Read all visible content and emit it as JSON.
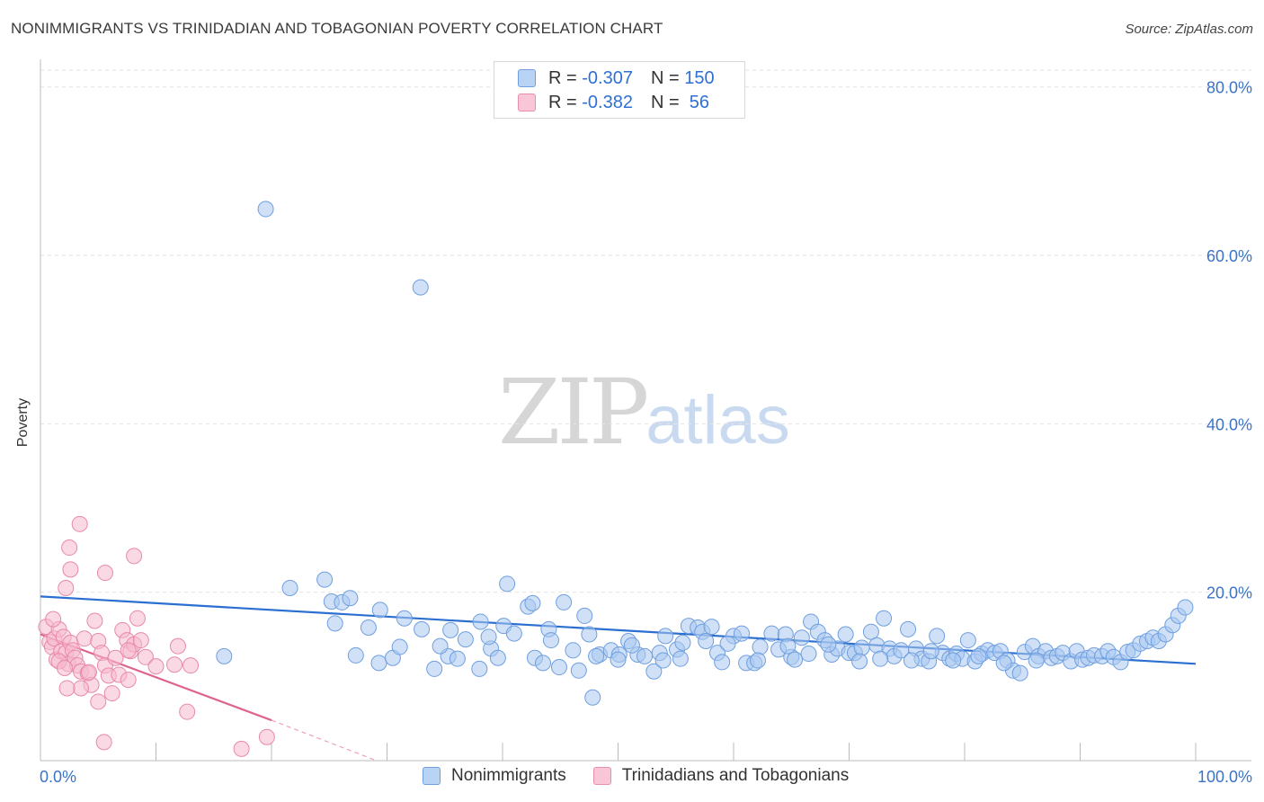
{
  "header": {
    "title": "NONIMMIGRANTS VS TRINIDADIAN AND TOBAGONIAN POVERTY CORRELATION CHART",
    "source": "Source: ZipAtlas.com"
  },
  "watermark": {
    "zip": "ZIP",
    "atlas": "atlas"
  },
  "legend": {
    "rows": [
      {
        "r_label": "R =",
        "r_value": "-0.307",
        "n_label": "N =",
        "n_value": "150"
      },
      {
        "r_label": "R =",
        "r_value": "-0.382",
        "n_label": "N =",
        "n_value": " 56"
      }
    ]
  },
  "bottom_legend": {
    "series_a": "Nonimmigrants",
    "series_b": "Trinidadians and Tobagonians"
  },
  "colors": {
    "blue_fill": "#a9c8f0",
    "blue_stroke": "#6f9fe0",
    "blue_line": "#2b6fd0",
    "pink_fill": "#f6b9cd",
    "pink_stroke": "#e889ab",
    "pink_line": "#e0628f",
    "grid": "#e3e3e3",
    "axis_label": "#3b73c9"
  },
  "chart_data": {
    "type": "scatter",
    "title": "NONIMMIGRANTS VS TRINIDADIAN AND TOBAGONIAN POVERTY CORRELATION CHART",
    "xlabel": "",
    "ylabel": "Poverty",
    "xlim": [
      0,
      100
    ],
    "ylim": [
      0,
      82
    ],
    "x_tick_labels": {
      "left": "0.0%",
      "right": "100.0%"
    },
    "y_ticks": [
      {
        "value": 20,
        "label": "20.0%"
      },
      {
        "value": 40,
        "label": "40.0%"
      },
      {
        "value": 60,
        "label": "60.0%"
      },
      {
        "value": 80,
        "label": "80.0%"
      }
    ],
    "series": [
      {
        "name": "Nonimmigrants",
        "r": -0.307,
        "n": 150,
        "trend": {
          "x0": 0,
          "y0": 19.5,
          "x1": 100,
          "y1": 11.5
        },
        "points": [
          [
            19.5,
            65.5
          ],
          [
            32.9,
            56.2
          ],
          [
            21.6,
            20.5
          ],
          [
            24.6,
            21.5
          ],
          [
            25.2,
            18.9
          ],
          [
            26.1,
            18.8
          ],
          [
            26.8,
            19.3
          ],
          [
            25.5,
            16.3
          ],
          [
            28.4,
            15.8
          ],
          [
            29.4,
            17.9
          ],
          [
            31.5,
            16.9
          ],
          [
            33.0,
            15.6
          ],
          [
            35.5,
            15.5
          ],
          [
            36.8,
            14.4
          ],
          [
            38.1,
            16.5
          ],
          [
            40.1,
            16.0
          ],
          [
            41.0,
            15.1
          ],
          [
            42.2,
            18.3
          ],
          [
            42.6,
            18.7
          ],
          [
            44.0,
            15.6
          ],
          [
            45.3,
            18.8
          ],
          [
            47.1,
            17.2
          ],
          [
            40.4,
            21.0
          ],
          [
            27.3,
            12.5
          ],
          [
            29.3,
            11.6
          ],
          [
            30.5,
            12.2
          ],
          [
            31.1,
            13.5
          ],
          [
            34.1,
            10.9
          ],
          [
            35.3,
            12.4
          ],
          [
            36.1,
            12.1
          ],
          [
            38.0,
            10.9
          ],
          [
            39.0,
            13.3
          ],
          [
            39.6,
            12.2
          ],
          [
            42.8,
            12.2
          ],
          [
            44.2,
            14.3
          ],
          [
            44.9,
            11.1
          ],
          [
            46.1,
            13.1
          ],
          [
            46.6,
            10.7
          ],
          [
            47.5,
            15.0
          ],
          [
            48.4,
            12.6
          ],
          [
            49.4,
            13.1
          ],
          [
            50.1,
            12.6
          ],
          [
            50.9,
            14.2
          ],
          [
            51.7,
            12.6
          ],
          [
            52.3,
            12.4
          ],
          [
            53.1,
            10.6
          ],
          [
            53.6,
            12.8
          ],
          [
            54.1,
            14.8
          ],
          [
            55.1,
            13.2
          ],
          [
            55.6,
            14.0
          ],
          [
            56.1,
            16.0
          ],
          [
            56.9,
            15.8
          ],
          [
            57.3,
            15.3
          ],
          [
            58.1,
            15.9
          ],
          [
            58.6,
            12.8
          ],
          [
            59.0,
            11.7
          ],
          [
            60.0,
            14.8
          ],
          [
            60.7,
            15.1
          ],
          [
            61.1,
            11.6
          ],
          [
            61.8,
            11.6
          ],
          [
            62.3,
            13.5
          ],
          [
            63.3,
            15.1
          ],
          [
            63.9,
            13.2
          ],
          [
            64.5,
            15.0
          ],
          [
            65.0,
            12.3
          ],
          [
            65.3,
            12.0
          ],
          [
            65.9,
            14.6
          ],
          [
            66.7,
            16.5
          ],
          [
            67.3,
            15.3
          ],
          [
            67.9,
            14.3
          ],
          [
            68.5,
            12.6
          ],
          [
            69.0,
            13.3
          ],
          [
            69.7,
            15.0
          ],
          [
            70.0,
            12.8
          ],
          [
            70.5,
            12.8
          ],
          [
            71.1,
            13.4
          ],
          [
            71.9,
            15.3
          ],
          [
            72.4,
            13.7
          ],
          [
            73.0,
            16.9
          ],
          [
            73.5,
            13.3
          ],
          [
            73.9,
            12.4
          ],
          [
            74.5,
            13.1
          ],
          [
            75.1,
            15.6
          ],
          [
            75.8,
            13.3
          ],
          [
            76.3,
            12.1
          ],
          [
            76.9,
            11.8
          ],
          [
            77.6,
            14.8
          ],
          [
            78.1,
            12.8
          ],
          [
            78.7,
            12.1
          ],
          [
            79.3,
            12.7
          ],
          [
            79.8,
            12.1
          ],
          [
            80.3,
            14.3
          ],
          [
            80.9,
            11.8
          ],
          [
            81.5,
            12.7
          ],
          [
            82.0,
            13.1
          ],
          [
            82.6,
            12.8
          ],
          [
            83.1,
            13.0
          ],
          [
            83.7,
            11.9
          ],
          [
            84.2,
            10.7
          ],
          [
            84.8,
            10.4
          ],
          [
            85.2,
            12.9
          ],
          [
            85.9,
            13.6
          ],
          [
            86.4,
            12.4
          ],
          [
            87.0,
            13.0
          ],
          [
            87.5,
            12.2
          ],
          [
            88.0,
            12.4
          ],
          [
            88.5,
            12.8
          ],
          [
            89.2,
            11.8
          ],
          [
            89.7,
            13.0
          ],
          [
            90.2,
            12.0
          ],
          [
            90.7,
            12.2
          ],
          [
            91.2,
            12.5
          ],
          [
            91.9,
            12.4
          ],
          [
            92.4,
            13.0
          ],
          [
            92.9,
            12.3
          ],
          [
            93.5,
            11.7
          ],
          [
            94.1,
            12.9
          ],
          [
            94.6,
            13.1
          ],
          [
            95.2,
            13.9
          ],
          [
            95.8,
            14.2
          ],
          [
            96.3,
            14.6
          ],
          [
            96.8,
            14.2
          ],
          [
            97.4,
            15.0
          ],
          [
            98.0,
            16.1
          ],
          [
            98.5,
            17.2
          ],
          [
            99.1,
            18.2
          ],
          [
            50.0,
            12.0
          ],
          [
            51.2,
            13.7
          ],
          [
            53.9,
            11.9
          ],
          [
            55.4,
            12.1
          ],
          [
            47.8,
            7.5
          ],
          [
            15.9,
            12.4
          ],
          [
            34.6,
            13.6
          ],
          [
            38.8,
            14.7
          ],
          [
            43.5,
            11.6
          ],
          [
            48.1,
            12.4
          ],
          [
            57.6,
            14.2
          ],
          [
            59.5,
            13.9
          ],
          [
            62.1,
            11.9
          ],
          [
            64.7,
            13.6
          ],
          [
            66.5,
            12.7
          ],
          [
            68.2,
            13.8
          ],
          [
            70.9,
            11.8
          ],
          [
            72.7,
            12.1
          ],
          [
            75.4,
            11.9
          ],
          [
            77.1,
            13.0
          ],
          [
            79.0,
            11.9
          ],
          [
            81.2,
            12.4
          ],
          [
            83.4,
            11.6
          ],
          [
            86.2,
            11.9
          ]
        ]
      },
      {
        "name": "Trinidadians and Tobagonians",
        "r": -0.382,
        "n": 56,
        "trend": {
          "x0": 0,
          "y0": 15.0,
          "x1": 20,
          "y1": 4.8
        },
        "trend_dashed": {
          "x0": 20,
          "y0": 4.8,
          "x1": 29.1,
          "y1": 0
        },
        "points": [
          [
            0.5,
            15.9
          ],
          [
            0.8,
            14.1
          ],
          [
            1.0,
            13.5
          ],
          [
            1.2,
            14.5
          ],
          [
            1.4,
            12.0
          ],
          [
            1.6,
            15.6
          ],
          [
            1.8,
            13.0
          ],
          [
            2.0,
            14.7
          ],
          [
            2.2,
            12.8
          ],
          [
            2.4,
            11.5
          ],
          [
            2.6,
            14.0
          ],
          [
            2.8,
            13.1
          ],
          [
            3.0,
            12.2
          ],
          [
            3.2,
            11.3
          ],
          [
            3.5,
            10.6
          ],
          [
            3.8,
            14.5
          ],
          [
            4.1,
            10.4
          ],
          [
            4.4,
            9.0
          ],
          [
            4.7,
            16.6
          ],
          [
            5.0,
            14.2
          ],
          [
            5.3,
            12.8
          ],
          [
            5.6,
            11.3
          ],
          [
            5.9,
            10.1
          ],
          [
            6.2,
            8.0
          ],
          [
            6.5,
            12.2
          ],
          [
            6.8,
            10.2
          ],
          [
            7.1,
            15.5
          ],
          [
            7.5,
            14.3
          ],
          [
            7.8,
            13.0
          ],
          [
            8.1,
            13.8
          ],
          [
            8.4,
            16.9
          ],
          [
            8.7,
            14.3
          ],
          [
            9.1,
            12.3
          ],
          [
            2.2,
            20.5
          ],
          [
            2.6,
            22.7
          ],
          [
            2.5,
            25.3
          ],
          [
            3.4,
            28.1
          ],
          [
            4.2,
            10.5
          ],
          [
            5.0,
            7.0
          ],
          [
            5.6,
            22.3
          ],
          [
            8.1,
            24.3
          ],
          [
            7.6,
            13.1
          ],
          [
            11.6,
            11.4
          ],
          [
            11.9,
            13.6
          ],
          [
            13.0,
            11.3
          ],
          [
            5.5,
            2.2
          ],
          [
            10.0,
            11.2
          ],
          [
            3.5,
            8.6
          ],
          [
            1.1,
            16.8
          ],
          [
            1.6,
            11.8
          ],
          [
            2.1,
            11.0
          ],
          [
            2.3,
            8.6
          ],
          [
            7.6,
            9.6
          ],
          [
            12.7,
            5.8
          ],
          [
            17.4,
            1.4
          ],
          [
            19.6,
            2.8
          ]
        ]
      }
    ]
  }
}
